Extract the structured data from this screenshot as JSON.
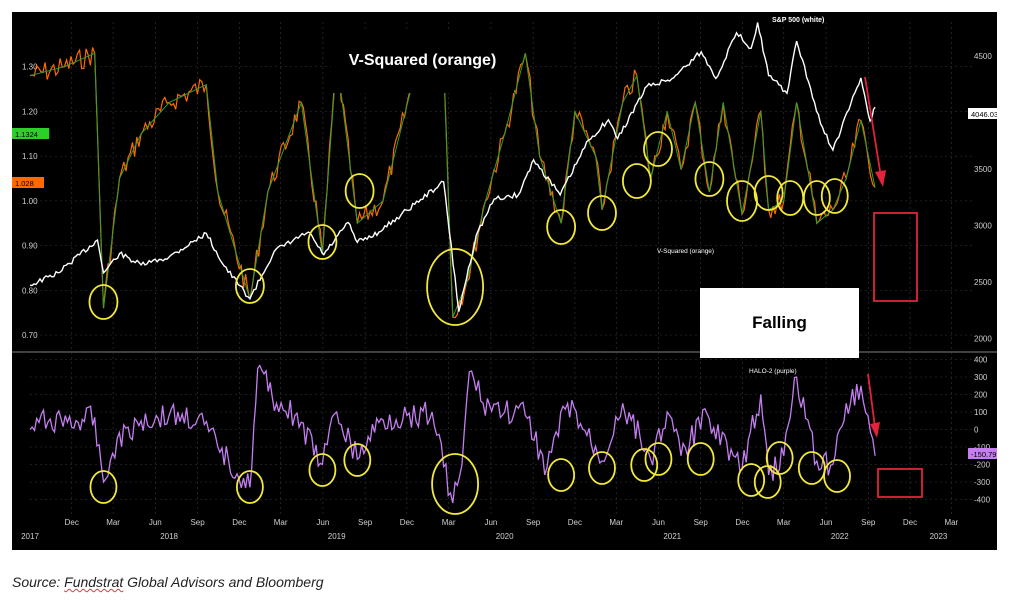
{
  "source": {
    "prefix": "Source:  ",
    "org": "Fundstrat",
    "rest": " Global Advisors and Bloomberg"
  },
  "annotations": {
    "vsq_title": "V-Squared (orange)",
    "falling": "Falling",
    "sp500_label": "S&P 500 (white)",
    "vsq_small_label": "V-Squared (orange)",
    "halo_label": "HALO-2 (purple)"
  },
  "colors": {
    "background": "#000000",
    "sp500": "#ffffff",
    "vsquared": "#ff6a00",
    "vsquared_ma": "#2e9e2e",
    "halo": "#c47ef0",
    "circles": "#f2e93a",
    "arrow": "#e2233a",
    "box": "#e2233a",
    "grid": "#3a3a3a",
    "tick_text": "#cfcfcf"
  },
  "chart_data": [
    {
      "type": "line",
      "name": "top-panel",
      "title": "",
      "y_left": {
        "ticks": [
          "0.70",
          "0.80",
          "0.90",
          "1.00",
          "1.10",
          "1.20",
          "1.30"
        ],
        "range": [
          0.68,
          1.4
        ]
      },
      "y_right": {
        "ticks": [
          "2000",
          "2500",
          "3000",
          "3500",
          "4000",
          "4500"
        ],
        "range": [
          1950,
          4800
        ]
      },
      "badges": [
        {
          "value": "1.1324",
          "axis": "left",
          "color": "#2bd02b"
        },
        {
          "value": "1.028",
          "axis": "left",
          "color": "#ff6a00"
        },
        {
          "value": "4046.03",
          "axis": "right",
          "color": "#ffffff"
        }
      ],
      "series": [
        {
          "name": "S&P 500 (white)",
          "axis": "right",
          "points": [
            [
              "2017-09-01",
              2470
            ],
            [
              "2017-11-01",
              2580
            ],
            [
              "2018-01-26",
              2870
            ],
            [
              "2018-02-08",
              2580
            ],
            [
              "2018-03-15",
              2750
            ],
            [
              "2018-05-01",
              2650
            ],
            [
              "2018-07-01",
              2720
            ],
            [
              "2018-09-20",
              2930
            ],
            [
              "2018-10-29",
              2640
            ],
            [
              "2018-12-24",
              2350
            ],
            [
              "2019-02-15",
              2770
            ],
            [
              "2019-04-30",
              2940
            ],
            [
              "2019-06-03",
              2740
            ],
            [
              "2019-07-26",
              3025
            ],
            [
              "2019-08-15",
              2850
            ],
            [
              "2019-10-01",
              2940
            ],
            [
              "2019-12-31",
              3230
            ],
            [
              "2020-02-19",
              3386
            ],
            [
              "2020-03-23",
              2237
            ],
            [
              "2020-04-30",
              2912
            ],
            [
              "2020-06-08",
              3232
            ],
            [
              "2020-07-31",
              3271
            ],
            [
              "2020-09-02",
              3580
            ],
            [
              "2020-10-30",
              3270
            ],
            [
              "2020-12-31",
              3756
            ],
            [
              "2021-02-12",
              3934
            ],
            [
              "2021-03-04",
              3768
            ],
            [
              "2021-05-07",
              4232
            ],
            [
              "2021-06-30",
              4297
            ],
            [
              "2021-09-02",
              4536
            ],
            [
              "2021-10-04",
              4300
            ],
            [
              "2021-11-18",
              4704
            ],
            [
              "2021-12-20",
              4568
            ],
            [
              "2022-01-03",
              4796
            ],
            [
              "2022-01-27",
              4326
            ],
            [
              "2022-03-08",
              4170
            ],
            [
              "2022-03-29",
              4631
            ],
            [
              "2022-05-20",
              3901
            ],
            [
              "2022-06-16",
              3666
            ],
            [
              "2022-08-16",
              4305
            ],
            [
              "2022-09-05",
              3924
            ],
            [
              "2022-09-16",
              4046
            ]
          ]
        },
        {
          "name": "V-Squared (orange)",
          "axis": "left",
          "points": [
            [
              "2017-09-01",
              1.28
            ],
            [
              "2017-11-15",
              1.3
            ],
            [
              "2018-01-20",
              1.33
            ],
            [
              "2018-02-08",
              0.76
            ],
            [
              "2018-03-15",
              1.05
            ],
            [
              "2018-05-01",
              1.15
            ],
            [
              "2018-07-01",
              1.22
            ],
            [
              "2018-09-20",
              1.26
            ],
            [
              "2018-10-15",
              1.02
            ],
            [
              "2018-12-24",
              0.78
            ],
            [
              "2019-02-01",
              1.02
            ],
            [
              "2019-04-15",
              1.22
            ],
            [
              "2019-05-31",
              0.88
            ],
            [
              "2019-07-01",
              1.32
            ],
            [
              "2019-08-15",
              0.95
            ],
            [
              "2019-10-10",
              1.0
            ],
            [
              "2019-12-10",
              1.25
            ],
            [
              "2020-01-25",
              1.35
            ],
            [
              "2020-02-20",
              1.28
            ],
            [
              "2020-03-10",
              0.74
            ],
            [
              "2020-04-10",
              0.82
            ],
            [
              "2020-05-20",
              1.0
            ],
            [
              "2020-07-01",
              1.15
            ],
            [
              "2020-08-15",
              1.33
            ],
            [
              "2020-09-15",
              1.1
            ],
            [
              "2020-11-01",
              0.95
            ],
            [
              "2020-12-01",
              1.2
            ],
            [
              "2021-01-15",
              1.1
            ],
            [
              "2021-01-29",
              0.98
            ],
            [
              "2021-03-15",
              1.22
            ],
            [
              "2021-04-15",
              1.28
            ],
            [
              "2021-05-15",
              1.05
            ],
            [
              "2021-06-20",
              1.2
            ],
            [
              "2021-07-20",
              1.07
            ],
            [
              "2021-08-20",
              1.22
            ],
            [
              "2021-09-20",
              1.02
            ],
            [
              "2021-10-20",
              1.22
            ],
            [
              "2021-11-30",
              0.97
            ],
            [
              "2022-01-10",
              1.2
            ],
            [
              "2022-01-27",
              0.98
            ],
            [
              "2022-03-01",
              1.0
            ],
            [
              "2022-03-29",
              1.22
            ],
            [
              "2022-05-12",
              0.95
            ],
            [
              "2022-06-16",
              0.98
            ],
            [
              "2022-07-15",
              1.05
            ],
            [
              "2022-08-16",
              1.18
            ],
            [
              "2022-09-16",
              1.03
            ]
          ]
        }
      ]
    },
    {
      "type": "line",
      "name": "bottom-panel",
      "title": "",
      "y": {
        "ticks": [
          "400",
          "300",
          "200",
          "100",
          "0",
          "-100",
          "-200",
          "-300",
          "-400"
        ],
        "range": [
          -500,
          420
        ]
      },
      "badges": [
        {
          "value": "-150.79",
          "color": "#c47ef0"
        }
      ],
      "x_ticks": [
        {
          "date": "2017-12-01",
          "label": "Dec"
        },
        {
          "date": "2018-03-01",
          "label": "Mar"
        },
        {
          "date": "2018-06-01",
          "label": "Jun"
        },
        {
          "date": "2018-09-01",
          "label": "Sep"
        },
        {
          "date": "2018-12-01",
          "label": "Dec"
        },
        {
          "date": "2019-03-01",
          "label": "Mar"
        },
        {
          "date": "2019-06-01",
          "label": "Jun"
        },
        {
          "date": "2019-09-01",
          "label": "Sep"
        },
        {
          "date": "2019-12-01",
          "label": "Dec"
        },
        {
          "date": "2020-03-01",
          "label": "Mar"
        },
        {
          "date": "2020-06-01",
          "label": "Jun"
        },
        {
          "date": "2020-09-01",
          "label": "Sep"
        },
        {
          "date": "2020-12-01",
          "label": "Dec"
        },
        {
          "date": "2021-03-01",
          "label": "Mar"
        },
        {
          "date": "2021-06-01",
          "label": "Jun"
        },
        {
          "date": "2021-09-01",
          "label": "Sep"
        },
        {
          "date": "2021-12-01",
          "label": "Dec"
        },
        {
          "date": "2022-03-01",
          "label": "Mar"
        },
        {
          "date": "2022-06-01",
          "label": "Jun"
        },
        {
          "date": "2022-09-01",
          "label": "Sep"
        },
        {
          "date": "2022-12-01",
          "label": "Dec"
        },
        {
          "date": "2023-03-01",
          "label": "Mar"
        }
      ],
      "year_ticks": [
        {
          "date": "2017-09-01",
          "label": "2017"
        },
        {
          "date": "2018-07-01",
          "label": "2018"
        },
        {
          "date": "2019-07-01",
          "label": "2019"
        },
        {
          "date": "2020-07-01",
          "label": "2020"
        },
        {
          "date": "2021-07-01",
          "label": "2021"
        },
        {
          "date": "2022-07-01",
          "label": "2022"
        },
        {
          "date": "2023-02-01",
          "label": "2023"
        }
      ],
      "series": [
        {
          "name": "HALO-2 (purple)",
          "points": [
            [
              "2017-09-01",
              0
            ],
            [
              "2017-10-15",
              60
            ],
            [
              "2017-12-15",
              40
            ],
            [
              "2018-01-20",
              70
            ],
            [
              "2018-02-08",
              -300
            ],
            [
              "2018-03-10",
              -50
            ],
            [
              "2018-05-01",
              50
            ],
            [
              "2018-07-01",
              80
            ],
            [
              "2018-09-01",
              60
            ],
            [
              "2018-10-15",
              -100
            ],
            [
              "2018-12-24",
              -330
            ],
            [
              "2019-01-10",
              350
            ],
            [
              "2019-02-20",
              150
            ],
            [
              "2019-04-01",
              80
            ],
            [
              "2019-05-31",
              -200
            ],
            [
              "2019-07-01",
              100
            ],
            [
              "2019-08-15",
              -170
            ],
            [
              "2019-10-01",
              40
            ],
            [
              "2019-12-01",
              80
            ],
            [
              "2020-01-25",
              100
            ],
            [
              "2020-03-10",
              -420
            ],
            [
              "2020-03-30",
              -200
            ],
            [
              "2020-04-15",
              330
            ],
            [
              "2020-05-15",
              150
            ],
            [
              "2020-07-01",
              100
            ],
            [
              "2020-08-15",
              80
            ],
            [
              "2020-10-01",
              -220
            ],
            [
              "2020-11-15",
              150
            ],
            [
              "2021-01-29",
              -180
            ],
            [
              "2021-03-15",
              150
            ],
            [
              "2021-05-15",
              -170
            ],
            [
              "2021-06-20",
              100
            ],
            [
              "2021-07-20",
              -150
            ],
            [
              "2021-09-15",
              90
            ],
            [
              "2021-11-30",
              -230
            ],
            [
              "2022-01-10",
              200
            ],
            [
              "2022-01-27",
              -260
            ],
            [
              "2022-03-01",
              -150
            ],
            [
              "2022-03-29",
              300
            ],
            [
              "2022-05-12",
              -180
            ],
            [
              "2022-06-16",
              -200
            ],
            [
              "2022-07-15",
              150
            ],
            [
              "2022-08-16",
              250
            ],
            [
              "2022-09-16",
              -150
            ]
          ]
        }
      ]
    }
  ]
}
